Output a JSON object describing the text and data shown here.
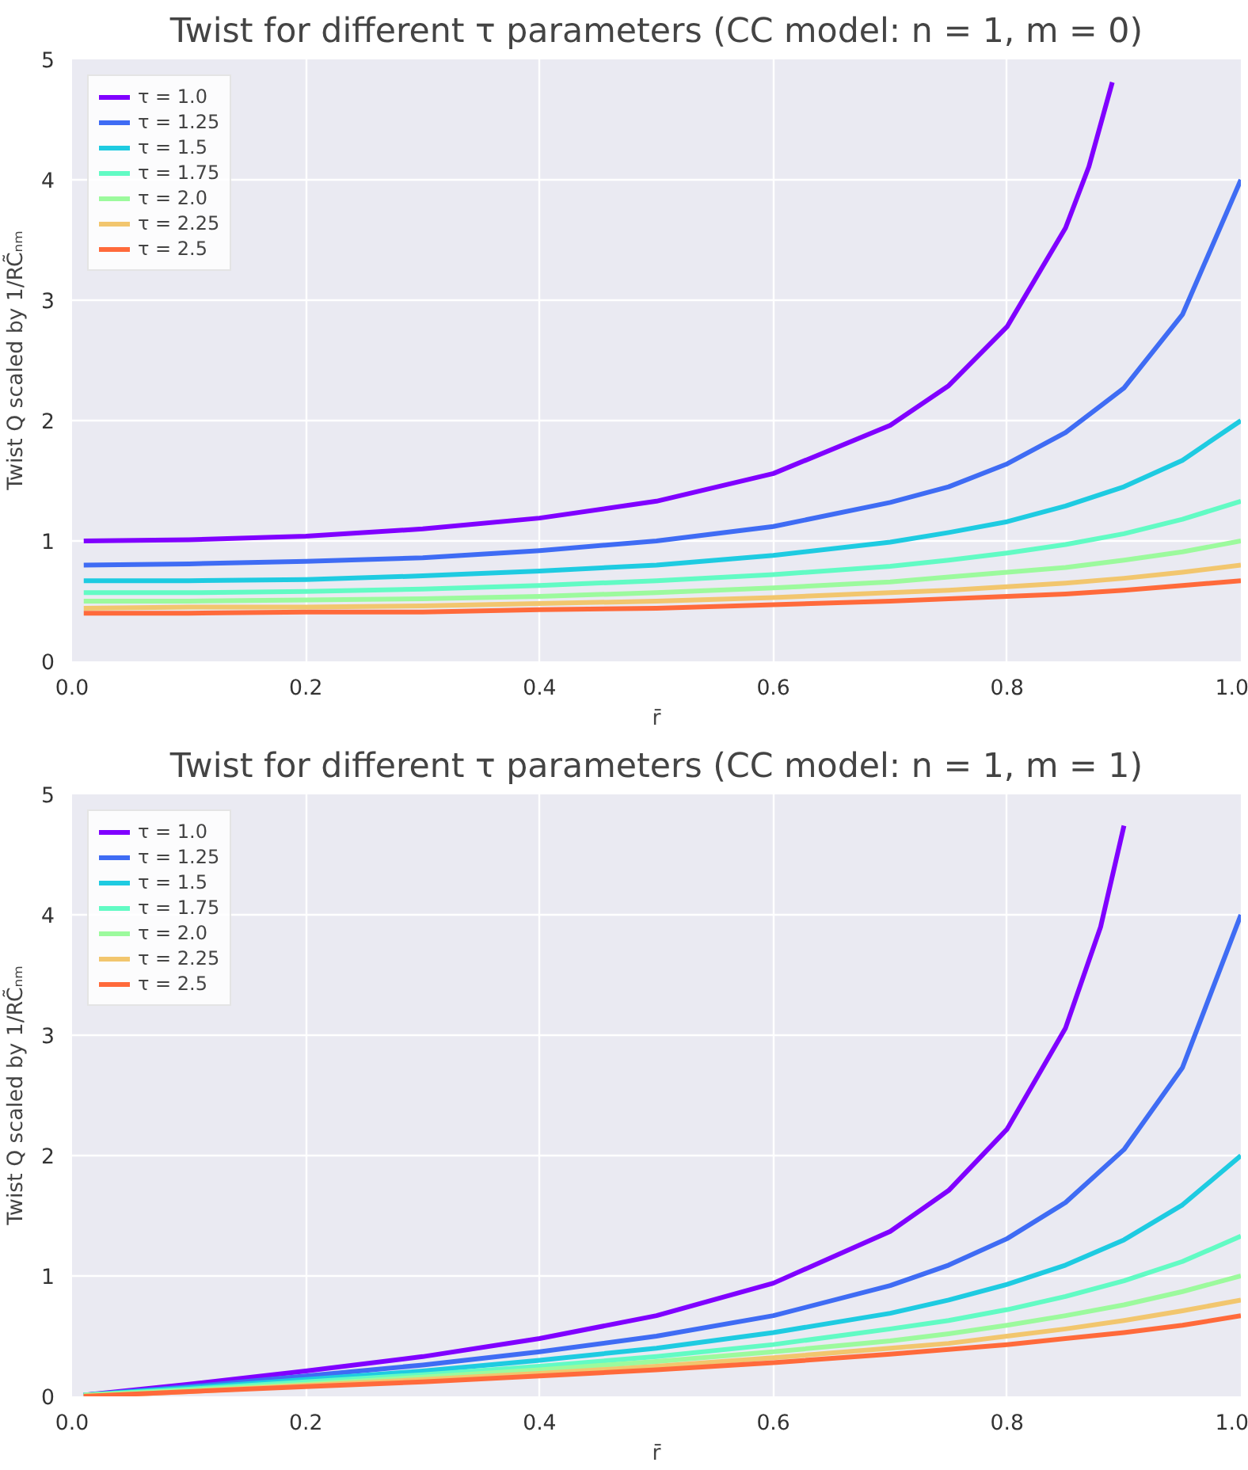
{
  "chart_data": [
    {
      "type": "line",
      "title": "Twist for different τ parameters (CC model: n = 1, m = 0)",
      "xlabel": "r̄",
      "ylabel": "Twist Q scaled by 1/RC̃ₙₘ",
      "xlim": [
        0,
        1
      ],
      "ylim": [
        0,
        5
      ],
      "xticks": [
        {
          "value": 0,
          "label": "0.0"
        },
        {
          "value": 0.2,
          "label": "0.2"
        },
        {
          "value": 0.4,
          "label": "0.4"
        },
        {
          "value": 0.6,
          "label": "0.6"
        },
        {
          "value": 0.8,
          "label": "0.8"
        },
        {
          "value": 1,
          "label": "1.0"
        }
      ],
      "yticks": [
        0,
        1,
        2,
        3,
        4,
        5
      ],
      "grid": true,
      "legend": "top left",
      "line_style": "solid",
      "series": [
        {
          "name": "τ = 1.0",
          "color": "#8000ff",
          "x": [
            0.01,
            0.1,
            0.2,
            0.3,
            0.4,
            0.5,
            0.6,
            0.7,
            0.75,
            0.8,
            0.85,
            0.87,
            0.89
          ],
          "values": [
            1.0,
            1.01,
            1.04,
            1.1,
            1.19,
            1.33,
            1.56,
            1.96,
            2.29,
            2.78,
            3.6,
            4.11,
            4.81
          ]
        },
        {
          "name": "τ = 1.25",
          "color": "#3f6cf4",
          "x": [
            0.01,
            0.1,
            0.2,
            0.3,
            0.4,
            0.5,
            0.6,
            0.7,
            0.75,
            0.8,
            0.85,
            0.9,
            0.95,
            1.0
          ],
          "values": [
            0.8,
            0.81,
            0.83,
            0.86,
            0.92,
            1.0,
            1.12,
            1.32,
            1.45,
            1.64,
            1.9,
            2.27,
            2.88,
            4.0
          ]
        },
        {
          "name": "τ = 1.5",
          "color": "#1ecbe1",
          "x": [
            0.01,
            0.1,
            0.2,
            0.3,
            0.4,
            0.5,
            0.6,
            0.7,
            0.75,
            0.8,
            0.85,
            0.9,
            0.95,
            1.0
          ],
          "values": [
            0.67,
            0.67,
            0.68,
            0.71,
            0.75,
            0.8,
            0.88,
            0.99,
            1.07,
            1.16,
            1.29,
            1.45,
            1.67,
            2.0
          ]
        },
        {
          "name": "τ = 1.75",
          "color": "#62fbc4",
          "x": [
            0.01,
            0.1,
            0.2,
            0.3,
            0.4,
            0.5,
            0.6,
            0.7,
            0.75,
            0.8,
            0.85,
            0.9,
            0.95,
            1.0
          ],
          "values": [
            0.57,
            0.57,
            0.58,
            0.6,
            0.63,
            0.67,
            0.72,
            0.79,
            0.84,
            0.9,
            0.97,
            1.06,
            1.18,
            1.33
          ]
        },
        {
          "name": "τ = 2.0",
          "color": "#9cfa9d",
          "x": [
            0.01,
            0.1,
            0.2,
            0.3,
            0.4,
            0.5,
            0.6,
            0.7,
            0.75,
            0.8,
            0.85,
            0.9,
            0.95,
            1.0
          ],
          "values": [
            0.5,
            0.5,
            0.51,
            0.52,
            0.54,
            0.57,
            0.61,
            0.66,
            0.7,
            0.74,
            0.78,
            0.84,
            0.91,
            1.0
          ]
        },
        {
          "name": "τ = 2.25",
          "color": "#f2c66e",
          "x": [
            0.01,
            0.1,
            0.2,
            0.3,
            0.4,
            0.5,
            0.6,
            0.7,
            0.75,
            0.8,
            0.85,
            0.9,
            0.95,
            1.0
          ],
          "values": [
            0.44,
            0.45,
            0.45,
            0.46,
            0.48,
            0.5,
            0.53,
            0.57,
            0.59,
            0.62,
            0.65,
            0.69,
            0.74,
            0.8
          ]
        },
        {
          "name": "τ = 2.5",
          "color": "#ff6a3b",
          "x": [
            0.01,
            0.1,
            0.2,
            0.3,
            0.4,
            0.5,
            0.6,
            0.7,
            0.75,
            0.8,
            0.85,
            0.9,
            0.95,
            1.0
          ],
          "values": [
            0.4,
            0.4,
            0.41,
            0.41,
            0.43,
            0.44,
            0.47,
            0.5,
            0.52,
            0.54,
            0.56,
            0.59,
            0.63,
            0.67
          ]
        }
      ]
    },
    {
      "type": "line",
      "title": "Twist for different τ parameters (CC model: n = 1, m = 1)",
      "xlabel": "r̄",
      "ylabel": "Twist Q scaled by 1/RC̃ₙₘ",
      "xlim": [
        0,
        1
      ],
      "ylim": [
        0,
        5
      ],
      "xticks": [
        {
          "value": 0,
          "label": "0.0"
        },
        {
          "value": 0.2,
          "label": "0.2"
        },
        {
          "value": 0.4,
          "label": "0.4"
        },
        {
          "value": 0.6,
          "label": "0.6"
        },
        {
          "value": 0.8,
          "label": "0.8"
        },
        {
          "value": 1,
          "label": "1.0"
        }
      ],
      "yticks": [
        0,
        1,
        2,
        3,
        4,
        5
      ],
      "grid": true,
      "legend": "top left",
      "line_style": "solid",
      "series": [
        {
          "name": "τ = 1.0",
          "color": "#8000ff",
          "x": [
            0.01,
            0.1,
            0.2,
            0.3,
            0.4,
            0.5,
            0.6,
            0.7,
            0.75,
            0.8,
            0.85,
            0.88,
            0.9
          ],
          "values": [
            0.01,
            0.1,
            0.21,
            0.33,
            0.48,
            0.67,
            0.94,
            1.37,
            1.71,
            2.22,
            3.06,
            3.9,
            4.74
          ]
        },
        {
          "name": "τ = 1.25",
          "color": "#3f6cf4",
          "x": [
            0.01,
            0.1,
            0.2,
            0.3,
            0.4,
            0.5,
            0.6,
            0.7,
            0.75,
            0.8,
            0.85,
            0.9,
            0.95,
            1.0
          ],
          "values": [
            0.01,
            0.08,
            0.17,
            0.26,
            0.37,
            0.5,
            0.67,
            0.92,
            1.09,
            1.31,
            1.61,
            2.05,
            2.73,
            4.0
          ]
        },
        {
          "name": "τ = 1.5",
          "color": "#1ecbe1",
          "x": [
            0.01,
            0.1,
            0.2,
            0.3,
            0.4,
            0.5,
            0.6,
            0.7,
            0.75,
            0.8,
            0.85,
            0.9,
            0.95,
            1.0
          ],
          "values": [
            0.01,
            0.07,
            0.14,
            0.21,
            0.3,
            0.4,
            0.53,
            0.69,
            0.8,
            0.93,
            1.09,
            1.3,
            1.59,
            2.0
          ]
        },
        {
          "name": "τ = 1.75",
          "color": "#62fbc4",
          "x": [
            0.01,
            0.1,
            0.2,
            0.3,
            0.4,
            0.5,
            0.6,
            0.7,
            0.75,
            0.8,
            0.85,
            0.9,
            0.95,
            1.0
          ],
          "values": [
            0.01,
            0.06,
            0.12,
            0.18,
            0.25,
            0.33,
            0.43,
            0.56,
            0.63,
            0.72,
            0.83,
            0.96,
            1.12,
            1.33
          ]
        },
        {
          "name": "τ = 2.0",
          "color": "#9cfa9d",
          "x": [
            0.01,
            0.1,
            0.2,
            0.3,
            0.4,
            0.5,
            0.6,
            0.7,
            0.75,
            0.8,
            0.85,
            0.9,
            0.95,
            1.0
          ],
          "values": [
            0.01,
            0.05,
            0.1,
            0.16,
            0.22,
            0.29,
            0.37,
            0.46,
            0.52,
            0.59,
            0.67,
            0.76,
            0.87,
            1.0
          ]
        },
        {
          "name": "τ = 2.25",
          "color": "#f2c66e",
          "x": [
            0.01,
            0.1,
            0.2,
            0.3,
            0.4,
            0.5,
            0.6,
            0.7,
            0.75,
            0.8,
            0.85,
            0.9,
            0.95,
            1.0
          ],
          "values": [
            0.0,
            0.04,
            0.09,
            0.14,
            0.19,
            0.25,
            0.32,
            0.4,
            0.44,
            0.5,
            0.56,
            0.63,
            0.71,
            0.8
          ]
        },
        {
          "name": "τ = 2.5",
          "color": "#ff6a3b",
          "x": [
            0.01,
            0.1,
            0.2,
            0.3,
            0.4,
            0.5,
            0.6,
            0.7,
            0.75,
            0.8,
            0.85,
            0.9,
            0.95,
            1.0
          ],
          "values": [
            0.0,
            0.04,
            0.08,
            0.12,
            0.17,
            0.22,
            0.28,
            0.35,
            0.39,
            0.43,
            0.48,
            0.53,
            0.59,
            0.67
          ]
        }
      ]
    }
  ]
}
